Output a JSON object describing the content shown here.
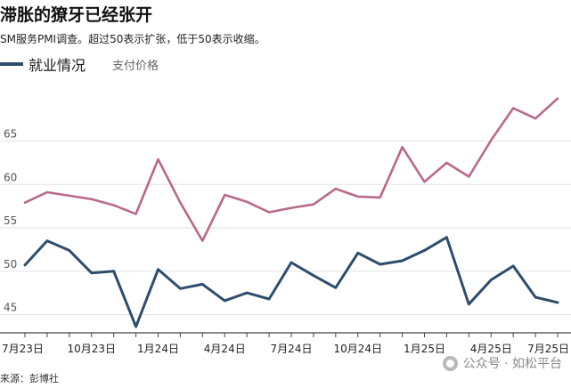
{
  "chart_data": {
    "type": "line",
    "title": "滞胀的獠牙已经张开",
    "subtitle": "SM服务PMI调查。超过50表示扩张，低于50表示收缩。",
    "source": "来源：彭博社",
    "categories": [
      "7月23日",
      "",
      "",
      "10月23日",
      "",
      "",
      "1月24日",
      "",
      "",
      "4月24日",
      "",
      "",
      "7月24日",
      "",
      "",
      "10月24日",
      "",
      "",
      "1月25日",
      "",
      "",
      "4月25日",
      "",
      "",
      "7月25日"
    ],
    "series": [
      {
        "name": "就业情况",
        "color": "#2e4d6d",
        "values": [
          50.7,
          53.5,
          52.4,
          49.8,
          50.0,
          43.6,
          50.2,
          48.0,
          48.5,
          46.6,
          47.5,
          46.8,
          51.0,
          49.5,
          48.1,
          52.1,
          50.8,
          51.2,
          52.4,
          53.9,
          46.2,
          49.0,
          50.6,
          47.0,
          46.4
        ]
      },
      {
        "name": "支付价格",
        "color": "#b9698b",
        "values": [
          57.9,
          59.1,
          58.7,
          58.3,
          57.6,
          56.6,
          62.9,
          57.9,
          53.5,
          58.8,
          58.0,
          56.8,
          57.3,
          57.7,
          59.5,
          58.6,
          58.5,
          64.3,
          60.3,
          62.5,
          60.9,
          65.1,
          68.8,
          67.6,
          69.9
        ]
      }
    ],
    "yticks": [
      45,
      50,
      55,
      60,
      65
    ],
    "ytick_labels": [
      "45",
      "50",
      "55",
      "60",
      "65"
    ],
    "ylim": [
      43,
      71
    ],
    "grid": true,
    "legend_position": "top-left",
    "watermark": "公众号 · 如松平台"
  }
}
